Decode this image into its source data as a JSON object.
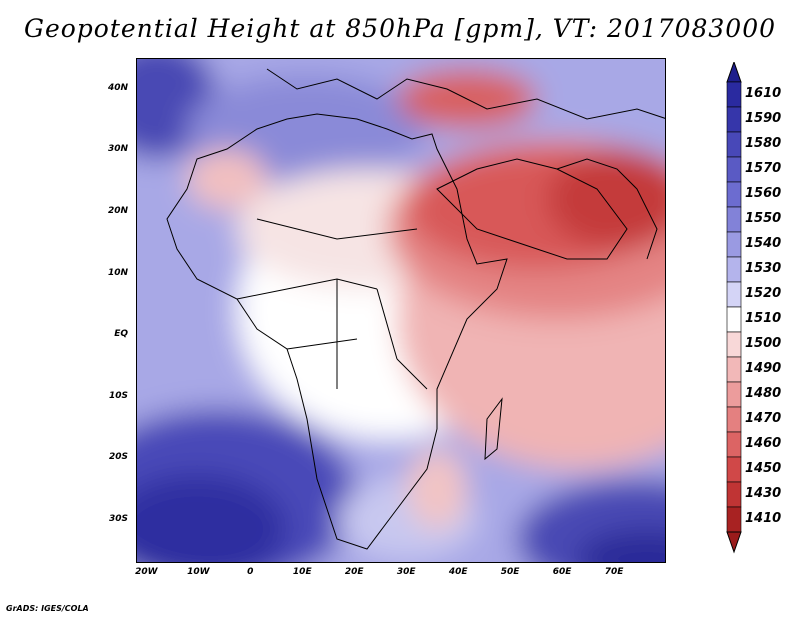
{
  "title": "Geopotential Height at 850hPa [gpm], VT: 2017083000",
  "credit": "GrADS: IGES/COLA",
  "map": {
    "lon_range": [
      -22,
      80
    ],
    "lat_range": [
      -37,
      45
    ],
    "y_ticks": [
      {
        "lat": 40,
        "label": "40N"
      },
      {
        "lat": 30,
        "label": "30N"
      },
      {
        "lat": 20,
        "label": "20N"
      },
      {
        "lat": 10,
        "label": "10N"
      },
      {
        "lat": 0,
        "label": "EQ"
      },
      {
        "lat": -10,
        "label": "10S"
      },
      {
        "lat": -20,
        "label": "20S"
      },
      {
        "lat": -30,
        "label": "30S"
      }
    ],
    "x_ticks": [
      {
        "lon": -20,
        "label": "20W"
      },
      {
        "lon": -10,
        "label": "10W"
      },
      {
        "lon": 0,
        "label": "0"
      },
      {
        "lon": 10,
        "label": "10E"
      },
      {
        "lon": 20,
        "label": "20E"
      },
      {
        "lon": 30,
        "label": "30E"
      },
      {
        "lon": 40,
        "label": "40E"
      },
      {
        "lon": 50,
        "label": "50E"
      },
      {
        "lon": 60,
        "label": "60E"
      },
      {
        "lon": 70,
        "label": "70E"
      }
    ]
  },
  "colorbar": {
    "top_arrow_color": "#1e1e8c",
    "bottom_arrow_color": "#9a1b1b",
    "levels": [
      {
        "label": "1610",
        "color": "#2a2aa0"
      },
      {
        "label": "1590",
        "color": "#3636aa"
      },
      {
        "label": "1580",
        "color": "#4848b8"
      },
      {
        "label": "1570",
        "color": "#5a5ac4"
      },
      {
        "label": "1560",
        "color": "#6c6cd0"
      },
      {
        "label": "1550",
        "color": "#8282d8"
      },
      {
        "label": "1540",
        "color": "#9a9ae2"
      },
      {
        "label": "1530",
        "color": "#b4b4ec"
      },
      {
        "label": "1520",
        "color": "#d4d4f6"
      },
      {
        "label": "1510",
        "color": "#ffffff"
      },
      {
        "label": "1500",
        "color": "#f8d8d8"
      },
      {
        "label": "1490",
        "color": "#f2b8b8"
      },
      {
        "label": "1480",
        "color": "#ec9c9c"
      },
      {
        "label": "1470",
        "color": "#e48080"
      },
      {
        "label": "1460",
        "color": "#dc6464"
      },
      {
        "label": "1450",
        "color": "#d04848"
      },
      {
        "label": "1430",
        "color": "#c03434"
      },
      {
        "label": "1410",
        "color": "#a82222"
      }
    ]
  }
}
